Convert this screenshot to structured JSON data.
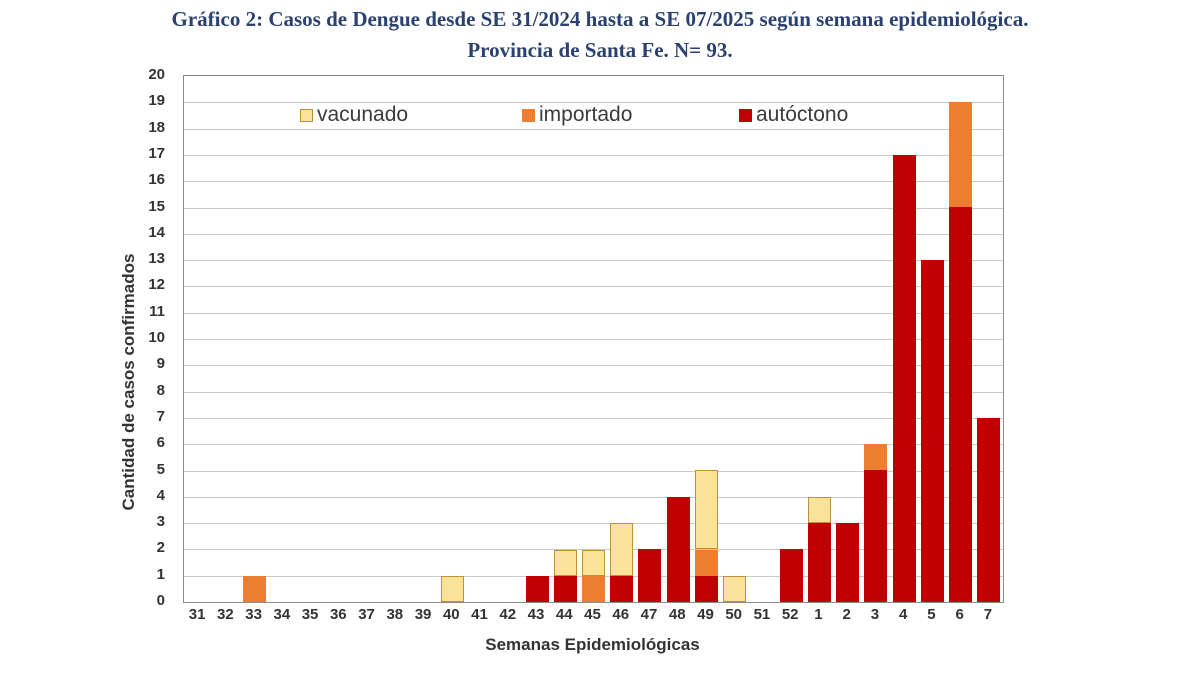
{
  "title": {
    "line1": "Gráfico 2: Casos de Dengue desde SE 31/2024 hasta a SE 07/2025 según semana epidemiológica.",
    "line2": "Provincia de Santa Fe. N= 93."
  },
  "chart_data": {
    "type": "bar",
    "stacked": true,
    "title": "Gráfico 2: Casos de Dengue desde SE 31/2024 hasta a SE 07/2025 según semana epidemiológica. Provincia de Santa Fe. N= 93.",
    "xlabel": "Semanas Epidemiológicas",
    "ylabel": "Cantidad de casos confirmados",
    "ylim": [
      0,
      20
    ],
    "ytick_step": 1,
    "grid": "horizontal",
    "legend_position": "top-inside",
    "categories": [
      "31",
      "32",
      "33",
      "34",
      "35",
      "36",
      "37",
      "38",
      "39",
      "40",
      "41",
      "42",
      "43",
      "44",
      "45",
      "46",
      "47",
      "48",
      "49",
      "50",
      "51",
      "52",
      "1",
      "2",
      "3",
      "4",
      "5",
      "6",
      "7"
    ],
    "series": [
      {
        "name": "autóctono",
        "color": "#C00000",
        "values": [
          0,
          0,
          0,
          0,
          0,
          0,
          0,
          0,
          0,
          0,
          0,
          0,
          1,
          1,
          0,
          1,
          2,
          4,
          1,
          0,
          0,
          2,
          3,
          3,
          5,
          17,
          13,
          15,
          7
        ]
      },
      {
        "name": "importado",
        "color": "#ED7D31",
        "values": [
          0,
          0,
          1,
          0,
          0,
          0,
          0,
          0,
          0,
          0,
          0,
          0,
          0,
          0,
          1,
          0,
          0,
          0,
          1,
          0,
          0,
          0,
          0,
          0,
          1,
          0,
          0,
          4,
          0
        ]
      },
      {
        "name": "vacunado",
        "color": "#FBE29A",
        "border_color": "#BD9136",
        "values": [
          0,
          0,
          0,
          0,
          0,
          0,
          0,
          0,
          0,
          1,
          0,
          0,
          0,
          1,
          1,
          2,
          0,
          0,
          3,
          1,
          0,
          0,
          1,
          0,
          0,
          0,
          0,
          0,
          0
        ]
      }
    ],
    "legend": [
      {
        "label": "vacunado",
        "color": "#FBE29A",
        "border_color": "#BD9136"
      },
      {
        "label": "importado",
        "color": "#ED7D31",
        "border_color": "#ED7D31"
      },
      {
        "label": "autóctono",
        "color": "#C00000",
        "border_color": "#C00000"
      }
    ]
  },
  "colors": {
    "title_text": "#2B4170",
    "axis_text": "#333333",
    "frame": "#8C8C8C",
    "gridline": "#C9C9C9",
    "background": "#FFFFFF"
  }
}
